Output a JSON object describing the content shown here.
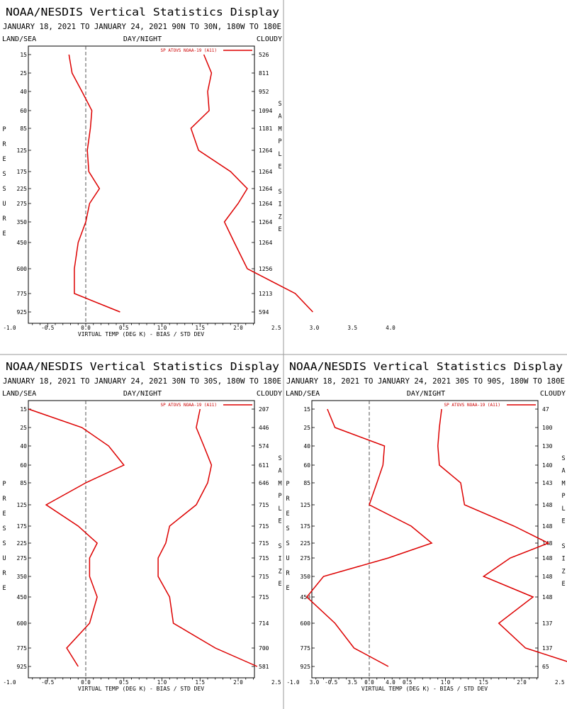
{
  "chart_data": [
    {
      "type": "line",
      "title": "NOAA/NESDIS Vertical Statistics Display",
      "subtitle": "JANUARY 18, 2021 TO JANUARY 24, 2021   90N TO 30N, 180W TO 180E",
      "header_left": "LAND/SEA",
      "header_center": "DAY/NIGHT",
      "header_right": "CLOUDY",
      "ylabel": "PRESSURE",
      "y2label": "SAMPLE SIZE",
      "xlabel": "VIRTUAL TEMP (DEG K) - BIAS / STD DEV",
      "xlim": [
        -1.5,
        4.5
      ],
      "x_ticks": [
        "-1.0",
        "-0.5",
        "0.0",
        "0.5",
        "1.0",
        "1.5",
        "2.0",
        "2.5",
        "3.0",
        "3.5",
        "4.0"
      ],
      "pressure_levels": [
        "15",
        "25",
        "40",
        "60",
        "85",
        "125",
        "175",
        "225",
        "275",
        "350",
        "450",
        "600",
        "775",
        "925"
      ],
      "sample_size": [
        "526",
        "811",
        "952",
        "1094",
        "1181",
        "1264",
        "1264",
        "1264",
        "1264",
        "1264",
        "1264",
        "1256",
        "1213",
        "594"
      ],
      "legend": "SP ATOVS NOAA-19 (A11)",
      "legend_position": "top-right",
      "series": [
        {
          "values": [
            -0.22,
            -0.18,
            -0.05,
            0.08,
            0.06,
            0.02,
            0.04,
            0.18,
            0.05,
            0.0,
            -0.1,
            -0.15,
            -0.15,
            0.45
          ]
        },
        {
          "values": [
            1.55,
            1.65,
            1.6,
            1.62,
            1.38,
            1.48,
            1.9,
            2.12,
            2.0,
            1.82,
            1.95,
            2.12,
            2.75,
            2.98
          ]
        }
      ]
    },
    {
      "type": "line",
      "title": "NOAA/NESDIS Vertical Statistics Display",
      "subtitle": "JANUARY 18, 2021 TO JANUARY 24, 2021   30N TO 30S, 180W TO 180E",
      "header_left": "LAND/SEA",
      "header_center": "DAY/NIGHT",
      "header_right": "CLOUDY",
      "ylabel": "PRESSURE",
      "y2label": "SAMPLE SIZE",
      "xlabel": "VIRTUAL TEMP (DEG K) - BIAS / STD DEV",
      "xlim": [
        -1.5,
        4.5
      ],
      "x_ticks": [
        "-1.0",
        "-0.5",
        "0.0",
        "0.5",
        "1.0",
        "1.5",
        "2.0",
        "2.5",
        "3.0",
        "3.5",
        "4.0"
      ],
      "pressure_levels": [
        "15",
        "25",
        "40",
        "60",
        "85",
        "125",
        "175",
        "225",
        "275",
        "350",
        "450",
        "600",
        "775",
        "925"
      ],
      "sample_size": [
        "207",
        "446",
        "574",
        "611",
        "646",
        "715",
        "715",
        "715",
        "715",
        "715",
        "715",
        "714",
        "700",
        "581"
      ],
      "legend": "SP ATOVS NOAA-19 (A11)",
      "legend_position": "top-right",
      "series": [
        {
          "values": [
            -0.75,
            -0.05,
            0.3,
            0.5,
            0.0,
            -0.52,
            -0.1,
            0.15,
            0.05,
            0.05,
            0.15,
            0.05,
            -0.25,
            -0.1
          ]
        },
        {
          "values": [
            1.5,
            1.45,
            1.55,
            1.65,
            1.6,
            1.45,
            1.1,
            1.05,
            0.95,
            0.95,
            1.1,
            1.15,
            1.7,
            2.25
          ]
        }
      ]
    },
    {
      "type": "line",
      "title": "NOAA/NESDIS Vertical Statistics Display",
      "subtitle": "JANUARY 18, 2021 TO JANUARY 24, 2021   30S TO 90S, 180W TO 180E",
      "header_left": "LAND/SEA",
      "header_center": "DAY/NIGHT",
      "header_right": "CLOUDY",
      "ylabel": "PRESSURE",
      "y2label": "SAMPLE SIZE",
      "xlabel": "VIRTUAL TEMP (DEG K) - BIAS / STD DEV",
      "xlim": [
        -1.5,
        4.5
      ],
      "x_ticks": [
        "-1.0",
        "-0.5",
        "0.0",
        "0.5",
        "1.0",
        "1.5",
        "2.0",
        "2.5",
        "3.0",
        "3.5",
        "4.0"
      ],
      "pressure_levels": [
        "15",
        "25",
        "40",
        "60",
        "85",
        "125",
        "175",
        "225",
        "275",
        "350",
        "450",
        "600",
        "775",
        "925"
      ],
      "sample_size": [
        "47",
        "100",
        "130",
        "140",
        "143",
        "148",
        "148",
        "148",
        "148",
        "148",
        "148",
        "137",
        "137",
        "65"
      ],
      "legend": "SP ATOVS NOAA-19 (A11)",
      "legend_position": "top-right",
      "series": [
        {
          "values": [
            -0.55,
            -0.45,
            0.2,
            0.18,
            0.1,
            0.0,
            0.55,
            0.82,
            0.25,
            -0.6,
            -0.82,
            -0.45,
            -0.2,
            0.25
          ]
        },
        {
          "values": [
            0.95,
            0.92,
            0.9,
            0.92,
            1.2,
            1.25,
            1.9,
            2.35,
            1.85,
            1.5,
            2.15,
            1.7,
            2.05,
            2.8
          ]
        }
      ]
    }
  ]
}
